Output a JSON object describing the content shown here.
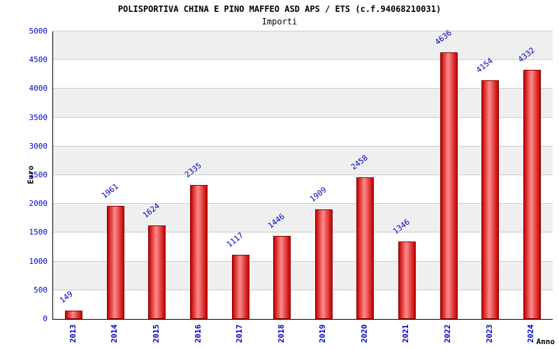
{
  "chart_data": {
    "type": "bar",
    "title": "POLISPORTIVA CHINA E PINO MAFFEO ASD APS / ETS (c.f.94068210031)",
    "subtitle": "Importi",
    "xlabel": "Anno",
    "ylabel": "Euro",
    "categories": [
      "2013",
      "2014",
      "2015",
      "2016",
      "2017",
      "2018",
      "2019",
      "2020",
      "2021",
      "2022",
      "2023",
      "2024"
    ],
    "values": [
      149,
      1961,
      1624,
      2335,
      1117,
      1446,
      1909,
      2458,
      1346,
      4636,
      4154,
      4332
    ],
    "ylim": [
      0,
      5000
    ],
    "ytick_step": 500,
    "grid": true,
    "legend": "none",
    "colors": {
      "bar_edge": "#8b0000",
      "bar_dark": "#c40000",
      "bar_light": "#ff8a8a",
      "label_blue": "#0000cc",
      "band_gray": "#efefef",
      "gridline": "#cccccc",
      "axis": "#000000"
    }
  }
}
